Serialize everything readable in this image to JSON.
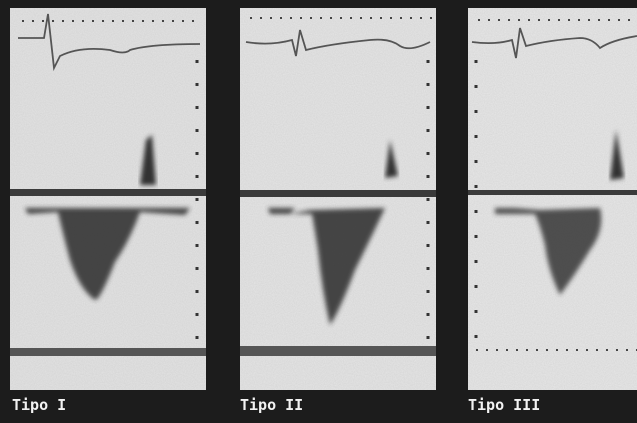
{
  "panels": [
    {
      "label": "Tipo I"
    },
    {
      "label": "Tipo II"
    },
    {
      "label": "Tipo III"
    }
  ]
}
